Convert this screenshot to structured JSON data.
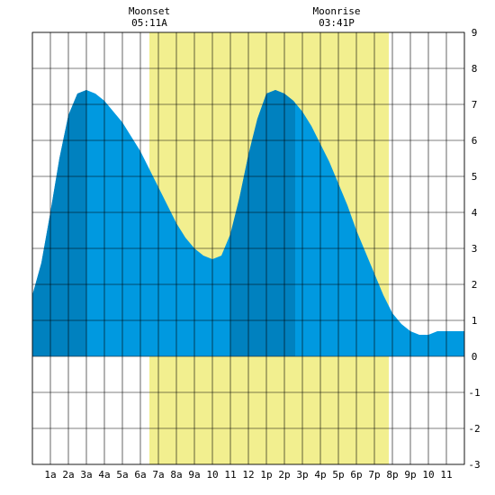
{
  "chart_data": {
    "type": "area",
    "title": "",
    "xlabel": "",
    "ylabel": "",
    "xlim": [
      0,
      24
    ],
    "ylim": [
      -3,
      9
    ],
    "y_ticks": [
      -3,
      -2,
      -1,
      0,
      1,
      2,
      3,
      4,
      5,
      6,
      7,
      8,
      9
    ],
    "x_tick_labels": [
      "1a",
      "2a",
      "3a",
      "4a",
      "5a",
      "6a",
      "7a",
      "8a",
      "9a",
      "10",
      "11",
      "12",
      "1p",
      "2p",
      "3p",
      "4p",
      "5p",
      "6p",
      "7p",
      "8p",
      "9p",
      "10",
      "11"
    ],
    "grid": true,
    "daylight": {
      "start": 6.5,
      "end": 19.8
    },
    "moon_events": [
      {
        "name": "Moonset",
        "time": "05:11A",
        "hour": 6.5
      },
      {
        "name": "Moonrise",
        "time": "03:41P",
        "hour": 16.9
      }
    ],
    "series": [
      {
        "x": [
          0,
          0.5,
          1,
          1.5,
          2,
          2.5,
          3,
          3.5,
          4,
          4.5,
          5,
          5.5,
          6,
          6.5,
          7,
          7.5,
          8,
          8.5,
          9,
          9.5,
          10,
          10.5,
          11,
          11.5,
          12,
          12.5,
          13,
          13.5,
          14,
          14.5,
          15,
          15.5,
          16,
          16.5,
          17,
          17.5,
          18,
          18.5,
          19,
          19.5,
          20,
          20.5,
          21,
          21.5,
          22,
          22.5,
          23,
          23.5,
          24
        ],
        "values": [
          1.7,
          2.6,
          4.0,
          5.5,
          6.7,
          7.3,
          7.4,
          7.3,
          7.1,
          6.8,
          6.5,
          6.1,
          5.7,
          5.2,
          4.7,
          4.2,
          3.7,
          3.3,
          3.0,
          2.8,
          2.7,
          2.8,
          3.4,
          4.4,
          5.6,
          6.6,
          7.3,
          7.4,
          7.3,
          7.1,
          6.8,
          6.4,
          5.9,
          5.4,
          4.8,
          4.2,
          3.5,
          2.9,
          2.3,
          1.7,
          1.2,
          0.9,
          0.7,
          0.6,
          0.6,
          0.7,
          0.7,
          0.7,
          0.7
        ]
      }
    ],
    "dark_bands": [
      {
        "start": 0,
        "end": 3
      },
      {
        "start": 11,
        "end": 14.6
      }
    ],
    "colors": {
      "daylight": "#f2ef8f",
      "tide": "#0099e0",
      "tide_dark": "#0081bf",
      "grid": "#000000"
    }
  }
}
